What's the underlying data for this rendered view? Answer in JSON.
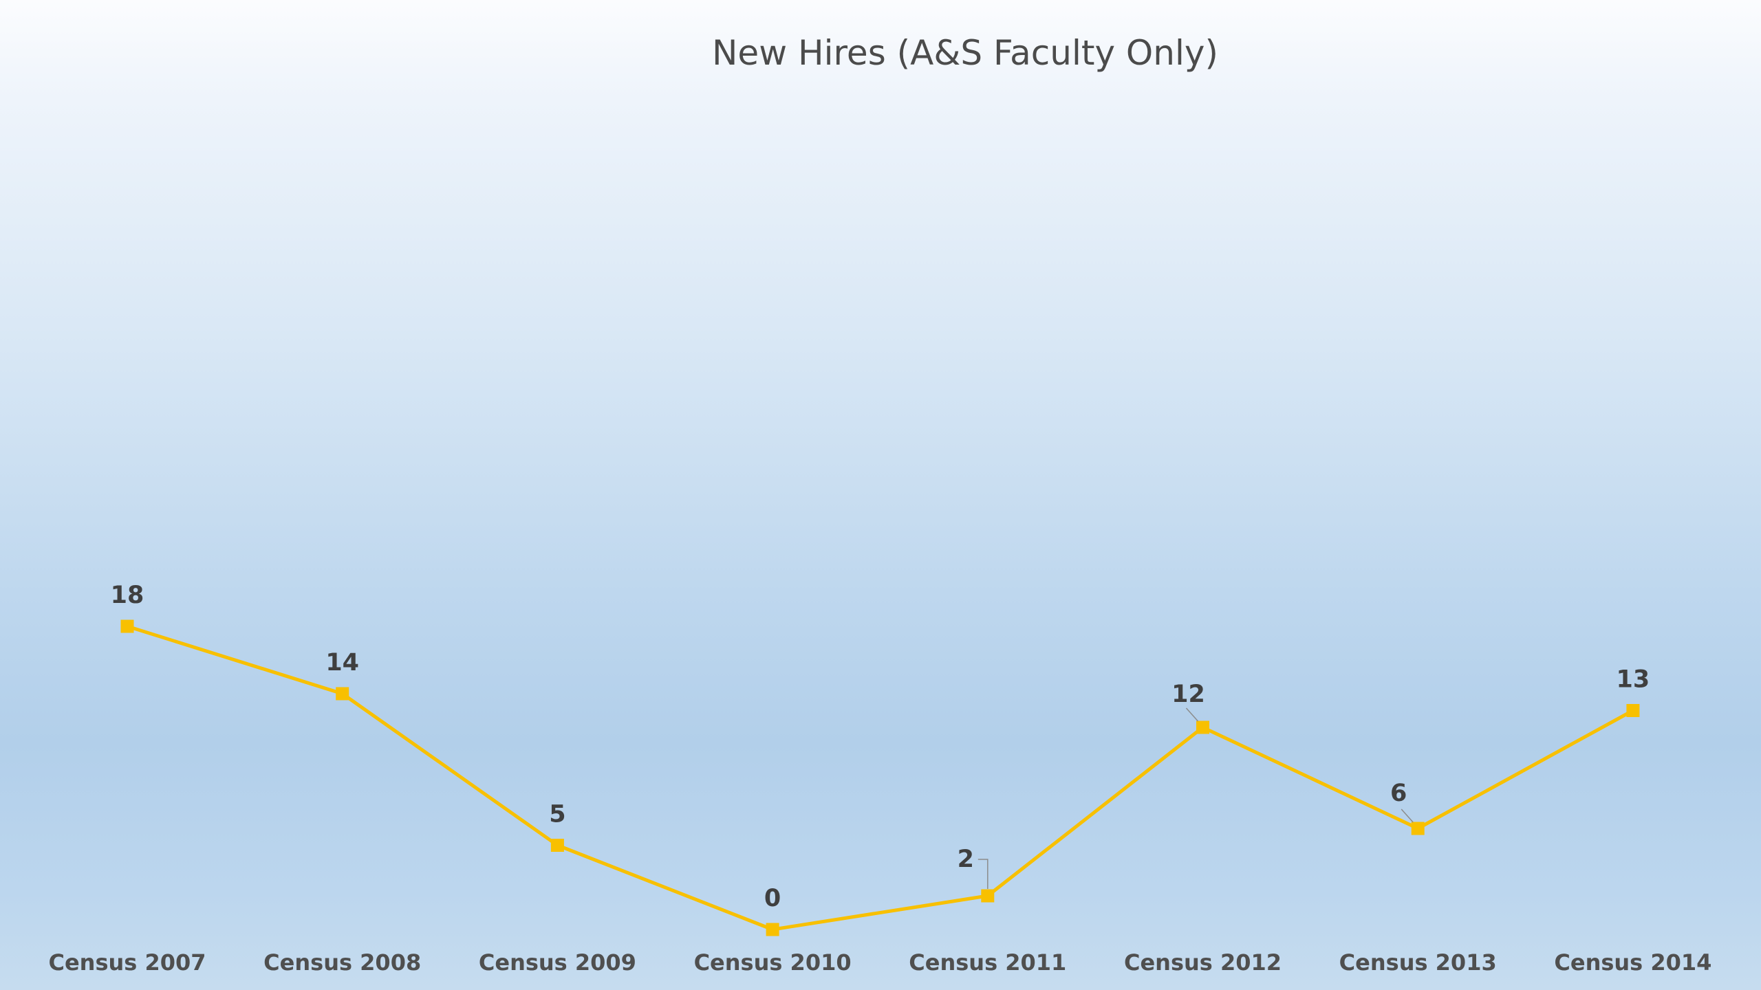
{
  "chart_data": {
    "type": "line",
    "title": "New Hires (A&S Faculty Only)",
    "categories": [
      "Census 2007",
      "Census 2008",
      "Census 2009",
      "Census 2010",
      "Census 2011",
      "Census 2012",
      "Census 2013",
      "Census 2014"
    ],
    "series": [
      {
        "values": [
          18,
          14,
          5,
          0,
          2,
          12,
          6,
          13
        ],
        "color": "#f8c000"
      }
    ],
    "ylim": [
      0,
      18
    ],
    "grid": false,
    "legend": "none",
    "marker": "square"
  }
}
